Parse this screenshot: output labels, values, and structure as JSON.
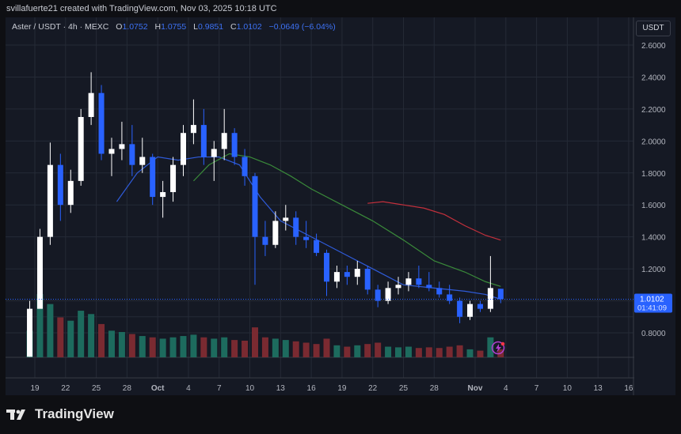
{
  "header": {
    "attribution": "svillafuerte21 created with TradingView.com, Nov 03, 2025 10:18 UTC"
  },
  "legend": {
    "symbol": "Aster / USDT · 4h · MEXC",
    "o_label": "O",
    "o": "1.0752",
    "h_label": "H",
    "h": "1.0755",
    "l_label": "L",
    "l": "0.9851",
    "c_label": "C",
    "c": "1.0102",
    "change": "−0.0649 (−6.04%)"
  },
  "currency": "USDT",
  "price_tag": {
    "price": "1.0102",
    "countdown": "01:41:09"
  },
  "footer": {
    "brand": "TradingView"
  },
  "colors": {
    "background": "#151924",
    "up": "#ffffff",
    "down": "#2962ff",
    "vol_up": "#1d6b5e",
    "vol_down": "#7a2a31",
    "ma_blue": "#2f5bd9",
    "ma_green": "#3a8a3a",
    "ma_red": "#c4303c",
    "accent": "#2962ff"
  },
  "chart_data": {
    "type": "candlestick",
    "ylim": [
      0.63,
      2.72
    ],
    "y_ticks": [
      "2.6000",
      "2.4000",
      "2.2000",
      "2.0000",
      "1.8000",
      "1.6000",
      "1.4000",
      "1.2000",
      "0.8000"
    ],
    "x_ticks": [
      {
        "day": 1,
        "label": "19"
      },
      {
        "day": 4,
        "label": "22"
      },
      {
        "day": 7,
        "label": "25"
      },
      {
        "day": 10,
        "label": "28"
      },
      {
        "day": 13,
        "label": "Oct"
      },
      {
        "day": 16,
        "label": "4"
      },
      {
        "day": 19,
        "label": "7"
      },
      {
        "day": 22,
        "label": "10"
      },
      {
        "day": 25,
        "label": "13"
      },
      {
        "day": 28,
        "label": "16"
      },
      {
        "day": 31,
        "label": "19"
      },
      {
        "day": 34,
        "label": "22"
      },
      {
        "day": 37,
        "label": "25"
      },
      {
        "day": 40,
        "label": "28"
      },
      {
        "day": 44,
        "label": "Nov"
      },
      {
        "day": 47,
        "label": "4"
      },
      {
        "day": 50,
        "label": "7"
      },
      {
        "day": 53,
        "label": "10"
      },
      {
        "day": 56,
        "label": "13"
      },
      {
        "day": 59,
        "label": "16"
      }
    ],
    "grid": true,
    "last_price": 1.0102,
    "candles_ohlc_daily_from_sep18": [
      [
        0.65,
        0.65,
        1.0,
        0.95
      ],
      [
        0.95,
        1.0,
        1.45,
        1.4
      ],
      [
        1.4,
        1.35,
        1.99,
        1.85
      ],
      [
        1.85,
        1.5,
        1.92,
        1.6
      ],
      [
        1.6,
        1.55,
        1.82,
        1.75
      ],
      [
        1.75,
        1.72,
        2.2,
        2.15
      ],
      [
        2.15,
        2.1,
        2.43,
        2.3
      ],
      [
        2.3,
        1.88,
        2.35,
        1.92
      ],
      [
        1.92,
        1.78,
        2.02,
        1.95
      ],
      [
        1.95,
        1.88,
        2.12,
        1.98
      ],
      [
        1.98,
        1.78,
        2.1,
        1.85
      ],
      [
        1.85,
        1.8,
        2.02,
        1.9
      ],
      [
        1.9,
        1.6,
        1.92,
        1.65
      ],
      [
        1.65,
        1.52,
        1.75,
        1.68
      ],
      [
        1.68,
        1.62,
        1.9,
        1.85
      ],
      [
        1.85,
        1.78,
        2.1,
        2.05
      ],
      [
        2.05,
        1.98,
        2.26,
        2.1
      ],
      [
        2.1,
        1.85,
        2.2,
        1.9
      ],
      [
        1.9,
        1.75,
        2.0,
        1.95
      ],
      [
        1.95,
        1.88,
        2.2,
        2.05
      ],
      [
        2.05,
        1.85,
        2.08,
        1.9
      ],
      [
        1.9,
        1.72,
        1.95,
        1.78
      ],
      [
        1.78,
        1.1,
        1.8,
        1.4
      ],
      [
        1.4,
        1.28,
        1.5,
        1.35
      ],
      [
        1.35,
        1.33,
        1.56,
        1.5
      ],
      [
        1.5,
        1.44,
        1.6,
        1.52
      ],
      [
        1.52,
        1.35,
        1.56,
        1.4
      ],
      [
        1.4,
        1.33,
        1.5,
        1.38
      ],
      [
        1.38,
        1.28,
        1.42,
        1.3
      ],
      [
        1.3,
        1.03,
        1.32,
        1.12
      ],
      [
        1.12,
        1.08,
        1.22,
        1.18
      ],
      [
        1.18,
        1.1,
        1.22,
        1.15
      ],
      [
        1.15,
        1.1,
        1.25,
        1.2
      ],
      [
        1.2,
        1.04,
        1.22,
        1.07
      ],
      [
        1.07,
        0.96,
        1.1,
        1.0
      ],
      [
        1.0,
        0.98,
        1.12,
        1.08
      ],
      [
        1.08,
        1.04,
        1.15,
        1.1
      ],
      [
        1.1,
        1.06,
        1.18,
        1.14
      ],
      [
        1.14,
        1.08,
        1.22,
        1.1
      ],
      [
        1.1,
        1.06,
        1.18,
        1.08
      ],
      [
        1.08,
        1.02,
        1.12,
        1.04
      ],
      [
        1.04,
        0.98,
        1.1,
        1.0
      ],
      [
        1.0,
        0.86,
        1.02,
        0.9
      ],
      [
        0.9,
        0.88,
        1.0,
        0.98
      ],
      [
        0.98,
        0.93,
        1.0,
        0.95
      ],
      [
        0.95,
        0.93,
        1.28,
        1.08
      ],
      [
        1.0752,
        0.9851,
        1.0755,
        1.0102
      ]
    ],
    "volume_relative": [
      40,
      95,
      80,
      60,
      55,
      70,
      65,
      50,
      40,
      38,
      35,
      32,
      30,
      28,
      30,
      32,
      34,
      30,
      28,
      30,
      26,
      25,
      45,
      30,
      28,
      26,
      24,
      22,
      20,
      28,
      18,
      16,
      18,
      20,
      22,
      16,
      15,
      16,
      14,
      15,
      14,
      16,
      18,
      12,
      10,
      30,
      12
    ],
    "ma_blue": [
      [
        9,
        1.62
      ],
      [
        11,
        1.8
      ],
      [
        13,
        1.9
      ],
      [
        15,
        1.88
      ],
      [
        17,
        1.9
      ],
      [
        19,
        1.9
      ],
      [
        21,
        1.85
      ],
      [
        23,
        1.65
      ],
      [
        25,
        1.5
      ],
      [
        28,
        1.4
      ],
      [
        31,
        1.3
      ],
      [
        34,
        1.2
      ],
      [
        37,
        1.1
      ],
      [
        40,
        1.08
      ],
      [
        43,
        1.06
      ],
      [
        45,
        1.04
      ],
      [
        46.5,
        1.01
      ]
    ],
    "ma_green": [
      [
        16.5,
        1.75
      ],
      [
        18,
        1.85
      ],
      [
        20,
        1.92
      ],
      [
        22,
        1.9
      ],
      [
        24,
        1.85
      ],
      [
        26,
        1.78
      ],
      [
        28,
        1.7
      ],
      [
        31,
        1.6
      ],
      [
        34,
        1.5
      ],
      [
        37,
        1.38
      ],
      [
        40,
        1.25
      ],
      [
        43,
        1.18
      ],
      [
        45,
        1.12
      ],
      [
        46.5,
        1.09
      ]
    ],
    "ma_red": [
      [
        33.5,
        1.61
      ],
      [
        35,
        1.62
      ],
      [
        37,
        1.6
      ],
      [
        39,
        1.58
      ],
      [
        41,
        1.54
      ],
      [
        43,
        1.47
      ],
      [
        45,
        1.41
      ],
      [
        46.5,
        1.38
      ]
    ]
  }
}
